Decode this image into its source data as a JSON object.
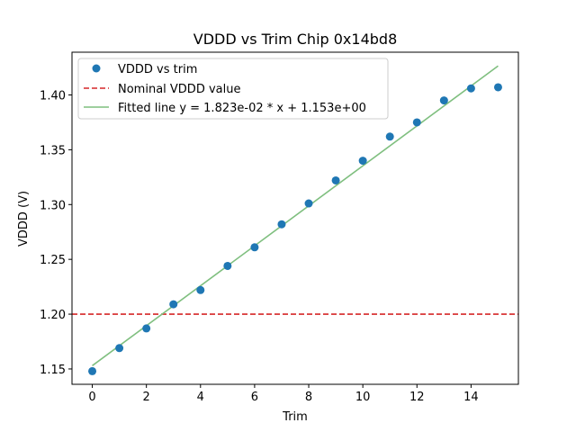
{
  "chart_data": {
    "type": "scatter",
    "title": "VDDD vs Trim Chip 0x14bd8",
    "xlabel": "Trim",
    "ylabel": "VDDD (V)",
    "xlim": [
      -0.75,
      15.75
    ],
    "ylim": [
      1.136,
      1.439
    ],
    "xticks": [
      0,
      2,
      4,
      6,
      8,
      10,
      12,
      14
    ],
    "xtick_labels": [
      "0",
      "2",
      "4",
      "6",
      "8",
      "10",
      "12",
      "14"
    ],
    "yticks": [
      1.15,
      1.2,
      1.25,
      1.3,
      1.35,
      1.4
    ],
    "ytick_labels": [
      "1.15",
      "1.20",
      "1.25",
      "1.30",
      "1.35",
      "1.40"
    ],
    "grid": false,
    "legend_position": "upper-left",
    "series": [
      {
        "name": "VDDD vs trim",
        "kind": "scatter",
        "color": "#1f77b4",
        "x": [
          0,
          1,
          2,
          3,
          4,
          5,
          6,
          7,
          8,
          9,
          10,
          11,
          12,
          13,
          14,
          15
        ],
        "values": [
          1.148,
          1.169,
          1.187,
          1.209,
          1.222,
          1.244,
          1.261,
          1.282,
          1.301,
          1.322,
          1.34,
          1.362,
          1.375,
          1.395,
          1.406,
          1.407
        ]
      },
      {
        "name": "Nominal VDDD value",
        "kind": "hline",
        "color": "#d62728",
        "y": 1.2
      },
      {
        "name": "Fitted line y = 1.823e-02 * x + 1.153e+00",
        "kind": "line",
        "color": "#7fbf7f",
        "slope": 0.01823,
        "intercept": 1.153,
        "x_range": [
          0,
          15
        ]
      }
    ]
  }
}
